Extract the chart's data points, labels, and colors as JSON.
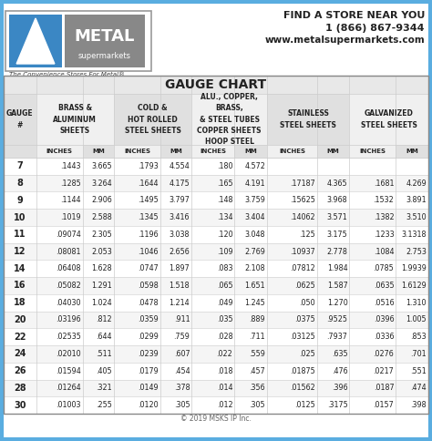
{
  "title": "GAUGE CHART",
  "header_text_right_1": "FIND A STORE NEAR YOU",
  "header_text_right_2": "1 (866) 867-9344",
  "header_text_right_3": "www.metalsupermarkets.com",
  "tagline": "The Convenience Stores For Metal®",
  "copyright": "© 2019 MSKS IP Inc.",
  "rows": [
    [
      "7",
      ".1443",
      "3.665",
      ".1793",
      "4.554",
      ".180",
      "4.572",
      "",
      "",
      "",
      ""
    ],
    [
      "8",
      ".1285",
      "3.264",
      ".1644",
      "4.175",
      ".165",
      "4.191",
      ".17187",
      "4.365",
      ".1681",
      "4.269"
    ],
    [
      "9",
      ".1144",
      "2.906",
      ".1495",
      "3.797",
      ".148",
      "3.759",
      ".15625",
      "3.968",
      ".1532",
      "3.891"
    ],
    [
      "10",
      ".1019",
      "2.588",
      ".1345",
      "3.416",
      ".134",
      "3.404",
      ".14062",
      "3.571",
      ".1382",
      "3.510"
    ],
    [
      "11",
      ".09074",
      "2.305",
      ".1196",
      "3.038",
      ".120",
      "3.048",
      ".125",
      "3.175",
      ".1233",
      "3.1318"
    ],
    [
      "12",
      ".08081",
      "2.053",
      ".1046",
      "2.656",
      ".109",
      "2.769",
      ".10937",
      "2.778",
      ".1084",
      "2.753"
    ],
    [
      "14",
      ".06408",
      "1.628",
      ".0747",
      "1.897",
      ".083",
      "2.108",
      ".07812",
      "1.984",
      ".0785",
      "1.9939"
    ],
    [
      "16",
      ".05082",
      "1.291",
      ".0598",
      "1.518",
      ".065",
      "1.651",
      ".0625",
      "1.587",
      ".0635",
      "1.6129"
    ],
    [
      "18",
      ".04030",
      "1.024",
      ".0478",
      "1.214",
      ".049",
      "1.245",
      ".050",
      "1.270",
      ".0516",
      "1.310"
    ],
    [
      "20",
      ".03196",
      ".812",
      ".0359",
      ".911",
      ".035",
      ".889",
      ".0375",
      ".9525",
      ".0396",
      "1.005"
    ],
    [
      "22",
      ".02535",
      ".644",
      ".0299",
      ".759",
      ".028",
      ".711",
      ".03125",
      ".7937",
      ".0336",
      ".853"
    ],
    [
      "24",
      ".02010",
      ".511",
      ".0239",
      ".607",
      ".022",
      ".559",
      ".025",
      ".635",
      ".0276",
      ".701"
    ],
    [
      "26",
      ".01594",
      ".405",
      ".0179",
      ".454",
      ".018",
      ".457",
      ".01875",
      ".476",
      ".0217",
      ".551"
    ],
    [
      "28",
      ".01264",
      ".321",
      ".0149",
      ".378",
      ".014",
      ".356",
      ".01562",
      ".396",
      ".0187",
      ".474"
    ],
    [
      "30",
      ".01003",
      ".255",
      ".0120",
      ".305",
      ".012",
      ".305",
      ".0125",
      ".3175",
      ".0157",
      ".398"
    ]
  ],
  "border_color": "#5aade0",
  "inner_border_color": "#888888",
  "header_bg": "#f0f0f0",
  "logo_box_bg": "#ffffff",
  "logo_box_border": "#999999",
  "logo_blue": "#3b87c4",
  "logo_gray": "#888888",
  "logo_darkgray": "#555555",
  "title_bg": "#e8e8e8",
  "col_header_bg1": "#e0e0e0",
  "col_header_bg2": "#f0f0f0",
  "sub_header_bg": "#e8e8e8",
  "row_bg_even": "#ffffff",
  "row_bg_odd": "#f5f5f5",
  "grid_light": "#cccccc",
  "text_dark": "#222222",
  "text_medium": "#444444",
  "text_light": "#666666"
}
